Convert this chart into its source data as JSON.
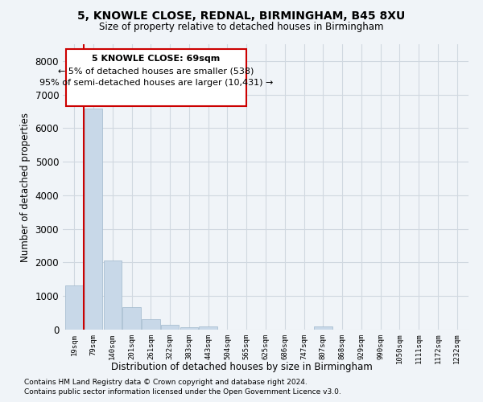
{
  "title1": "5, KNOWLE CLOSE, REDNAL, BIRMINGHAM, B45 8XU",
  "title2": "Size of property relative to detached houses in Birmingham",
  "xlabel": "Distribution of detached houses by size in Birmingham",
  "ylabel": "Number of detached properties",
  "footer1": "Contains HM Land Registry data © Crown copyright and database right 2024.",
  "footer2": "Contains public sector information licensed under the Open Government Licence v3.0.",
  "annotation_title": "5 KNOWLE CLOSE: 69sqm",
  "annotation_line1": "← 5% of detached houses are smaller (538)",
  "annotation_line2": "95% of semi-detached houses are larger (10,431) →",
  "bar_color": "#c8d8e8",
  "bar_edge_color": "#a0b8cc",
  "highlight_line_color": "#cc0000",
  "annotation_box_color": "#ffffff",
  "annotation_box_edge": "#cc0000",
  "ylim": [
    0,
    8500
  ],
  "yticks": [
    0,
    1000,
    2000,
    3000,
    4000,
    5000,
    6000,
    7000,
    8000
  ],
  "categories": [
    "19sqm",
    "79sqm",
    "140sqm",
    "201sqm",
    "261sqm",
    "322sqm",
    "383sqm",
    "443sqm",
    "504sqm",
    "565sqm",
    "625sqm",
    "686sqm",
    "747sqm",
    "807sqm",
    "868sqm",
    "929sqm",
    "990sqm",
    "1050sqm",
    "1111sqm",
    "1172sqm",
    "1232sqm"
  ],
  "values": [
    1320,
    6580,
    2060,
    680,
    300,
    140,
    80,
    95,
    0,
    0,
    0,
    0,
    0,
    85,
    0,
    0,
    0,
    0,
    0,
    0,
    0
  ],
  "grid_color": "#d0d8e0",
  "background_color": "#f0f4f8"
}
